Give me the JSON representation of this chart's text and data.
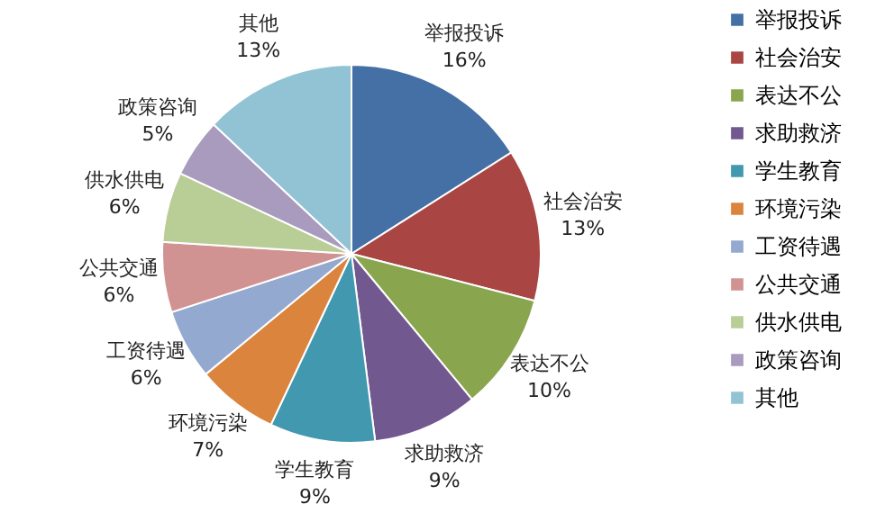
{
  "chart_data": {
    "type": "pie",
    "categories": [
      "举报投诉",
      "社会治安",
      "表达不公",
      "求助救济",
      "学生教育",
      "环境污染",
      "工资待遇",
      "公共交通",
      "供水供电",
      "政策咨询",
      "其他"
    ],
    "values": [
      16,
      13,
      10,
      9,
      9,
      7,
      6,
      6,
      6,
      5,
      13
    ],
    "value_labels": [
      "16%",
      "13%",
      "10%",
      "9%",
      "9%",
      "7%",
      "6%",
      "6%",
      "6%",
      "5%",
      "13%"
    ],
    "colors": [
      "#4470a5",
      "#a94643",
      "#89a54e",
      "#71588f",
      "#4198af",
      "#db843d",
      "#93a9cf",
      "#d19392",
      "#b9cd96",
      "#a99bbd",
      "#92c3d4"
    ],
    "legend": "right"
  }
}
